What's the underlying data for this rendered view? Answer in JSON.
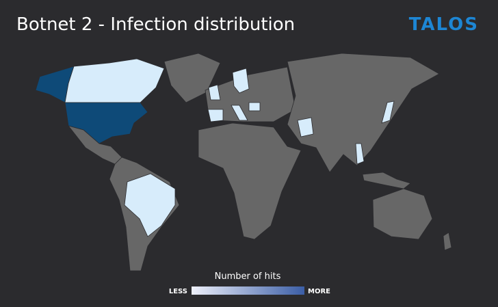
{
  "header": {
    "title": "Botnet 2 - Infection distribution",
    "logo": "TALOS"
  },
  "legend": {
    "title": "Number of hits",
    "low_label": "LESS",
    "high_label": "MORE"
  }
}
